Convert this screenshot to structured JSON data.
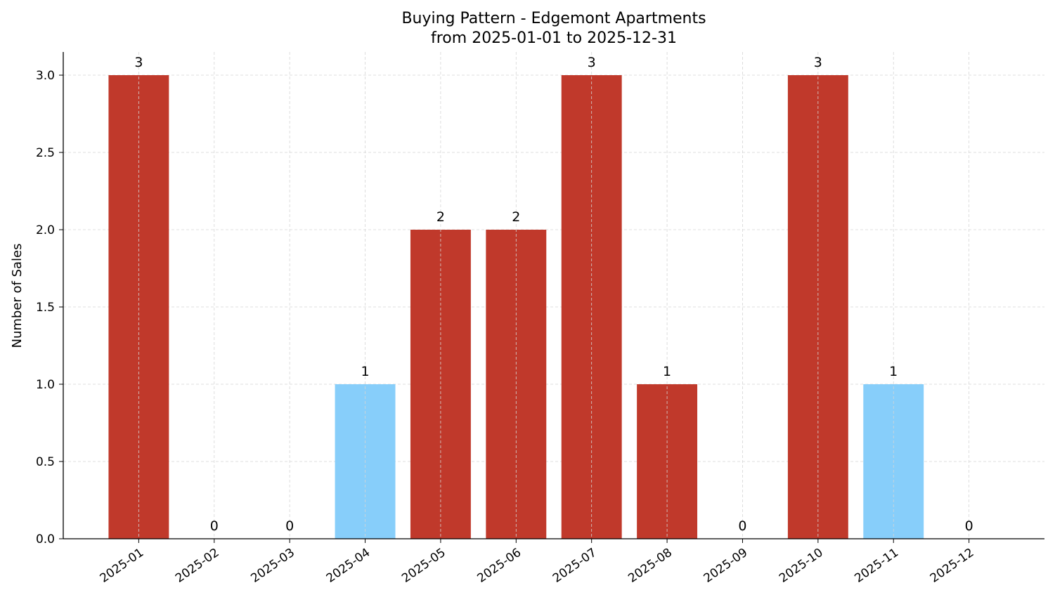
{
  "chart_data": {
    "type": "bar",
    "title": "Buying Pattern - Edgemont Apartments",
    "subtitle": "from 2025-01-01 to 2025-12-31",
    "xlabel": "",
    "ylabel": "Number of Sales",
    "categories": [
      "2025-01",
      "2025-02",
      "2025-03",
      "2025-04",
      "2025-05",
      "2025-06",
      "2025-07",
      "2025-08",
      "2025-09",
      "2025-10",
      "2025-11",
      "2025-12"
    ],
    "values": [
      3,
      0,
      0,
      1,
      2,
      2,
      3,
      1,
      0,
      3,
      1,
      0
    ],
    "bar_colors": [
      "#c0392b",
      "#c0392b",
      "#c0392b",
      "#87cefa",
      "#c0392b",
      "#c0392b",
      "#c0392b",
      "#c0392b",
      "#c0392b",
      "#c0392b",
      "#87cefa",
      "#c0392b"
    ],
    "data_labels": [
      "3",
      "0",
      "0",
      "1",
      "2",
      "2",
      "3",
      "1",
      "0",
      "3",
      "1",
      "0"
    ],
    "ylim": [
      0,
      3.15
    ],
    "yticks": [
      "0.0",
      "0.5",
      "1.0",
      "1.5",
      "2.0",
      "2.5",
      "3.0"
    ],
    "grid": true,
    "legend": "none"
  }
}
